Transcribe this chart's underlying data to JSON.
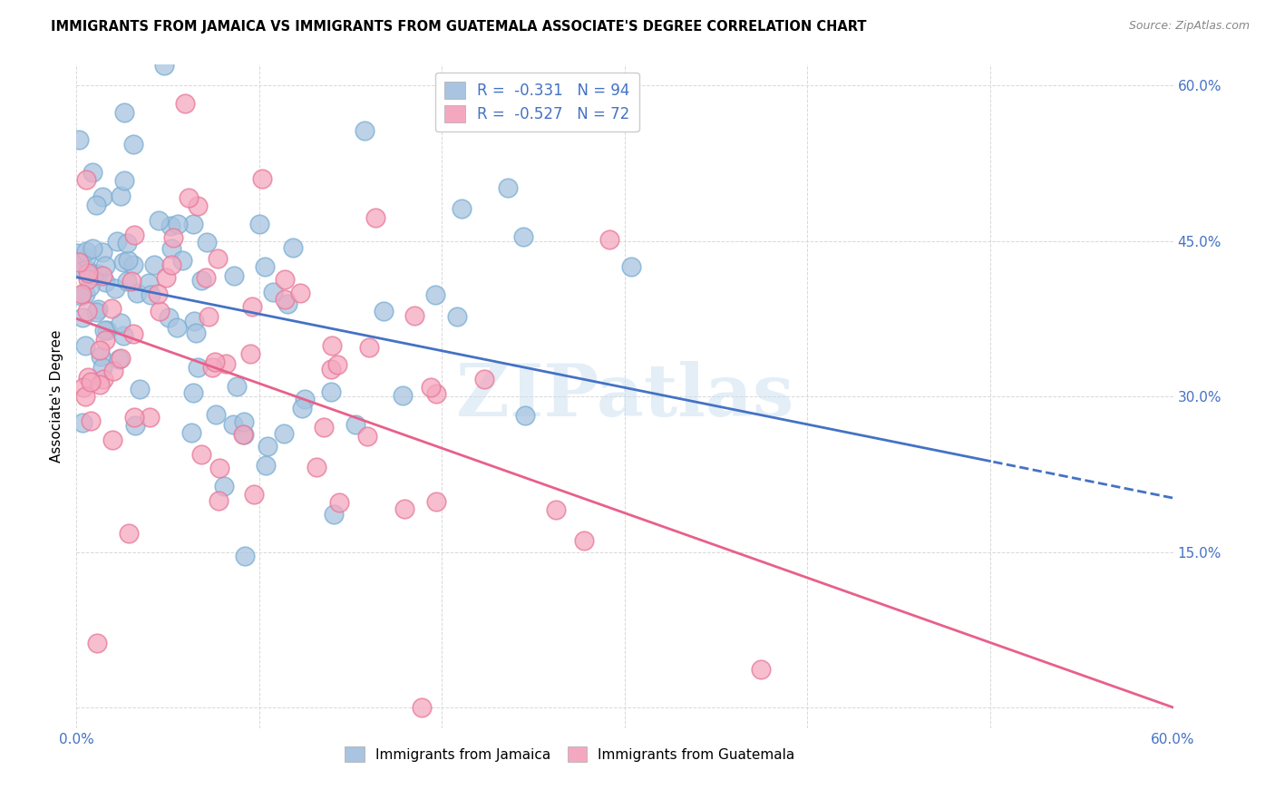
{
  "title": "IMMIGRANTS FROM JAMAICA VS IMMIGRANTS FROM GUATEMALA ASSOCIATE'S DEGREE CORRELATION CHART",
  "source": "Source: ZipAtlas.com",
  "ylabel": "Associate's Degree",
  "xlim": [
    0.0,
    0.6
  ],
  "ylim": [
    -0.02,
    0.62
  ],
  "jamaica_color": "#a8c4e0",
  "jamaica_edge_color": "#7aafd4",
  "guatemala_color": "#f4a8c0",
  "guatemala_edge_color": "#e87898",
  "regression_jamaica_color": "#4472c4",
  "regression_guatemala_color": "#e8608a",
  "legend_text_j": "R =  -0.331   N = 94",
  "legend_text_g": "R =  -0.527   N = 72",
  "legend_label_jamaica": "Immigrants from Jamaica",
  "legend_label_guatemala": "Immigrants from Guatemala",
  "watermark": "ZIPatlas",
  "background_color": "#ffffff",
  "grid_color": "#d8d8d8",
  "tick_label_color": "#4472c4",
  "jamaica_line_intercept": 0.415,
  "jamaica_line_slope": -0.355,
  "guatemala_line_intercept": 0.375,
  "guatemala_line_slope": -0.625
}
